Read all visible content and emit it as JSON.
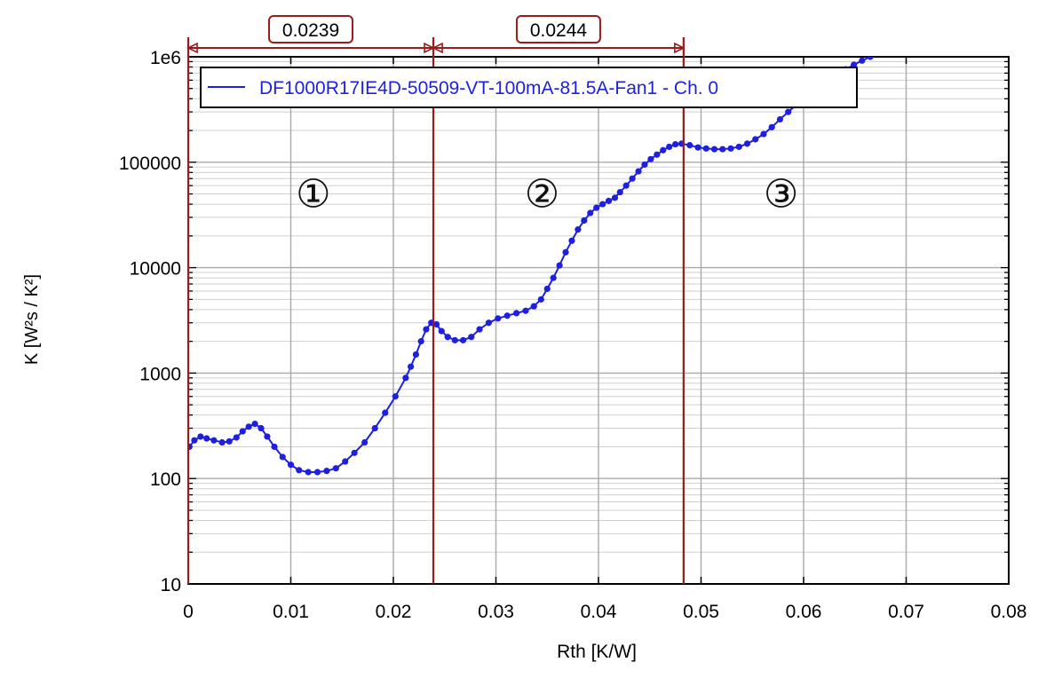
{
  "chart_data": {
    "type": "scatter",
    "xlabel": "Rth  [K/W]",
    "ylabel": "K  [W²s / K²]",
    "xlim": [
      0,
      0.08
    ],
    "ylim": [
      10,
      1000000
    ],
    "yscale": "log",
    "x_ticks": [
      "0",
      "0.01",
      "0.02",
      "0.03",
      "0.04",
      "0.05",
      "0.06",
      "0.07",
      "0.08"
    ],
    "x_tick_values": [
      0,
      0.01,
      0.02,
      0.03,
      0.04,
      0.05,
      0.06,
      0.07,
      0.08
    ],
    "y_ticks": [
      "10",
      "100",
      "1000",
      "10000",
      "100000",
      "1e6"
    ],
    "y_tick_values": [
      10,
      100,
      1000,
      10000,
      100000,
      1000000
    ],
    "grid": true,
    "legend_position": "top-left",
    "series": [
      {
        "name": "DF1000R17IE4D-50509-VT-100mA-81.5A-Fan1 - Ch. 0",
        "color": "#1f1fe0",
        "x": [
          0.0001,
          0.0006,
          0.0012,
          0.0018,
          0.0025,
          0.0033,
          0.004,
          0.0047,
          0.0053,
          0.0059,
          0.0065,
          0.0071,
          0.0077,
          0.0084,
          0.0092,
          0.01,
          0.0108,
          0.0117,
          0.0126,
          0.0135,
          0.0144,
          0.0153,
          0.0162,
          0.0172,
          0.0182,
          0.0192,
          0.0202,
          0.0212,
          0.0217,
          0.0222,
          0.0227,
          0.0232,
          0.0237,
          0.0242,
          0.0247,
          0.0253,
          0.026,
          0.0268,
          0.0276,
          0.0284,
          0.0293,
          0.0302,
          0.0311,
          0.032,
          0.0329,
          0.0337,
          0.0344,
          0.035,
          0.0356,
          0.0362,
          0.0368,
          0.0374,
          0.038,
          0.0386,
          0.0392,
          0.0398,
          0.0404,
          0.041,
          0.0416,
          0.0421,
          0.0427,
          0.0433,
          0.0439,
          0.0445,
          0.0451,
          0.0457,
          0.0463,
          0.0469,
          0.0475,
          0.0481,
          0.0489,
          0.0497,
          0.0505,
          0.0513,
          0.0521,
          0.0529,
          0.0537,
          0.0545,
          0.0553,
          0.0561,
          0.0569,
          0.0577,
          0.0585,
          0.0593,
          0.0601,
          0.0609,
          0.0617,
          0.0625,
          0.0633,
          0.0641,
          0.0649,
          0.0657,
          0.0665
        ],
        "y": [
          200,
          230,
          250,
          240,
          230,
          220,
          225,
          245,
          280,
          310,
          330,
          300,
          250,
          200,
          160,
          135,
          120,
          115,
          115,
          118,
          125,
          145,
          175,
          220,
          300,
          420,
          600,
          900,
          1150,
          1500,
          2000,
          2600,
          3000,
          2900,
          2500,
          2200,
          2050,
          2050,
          2200,
          2600,
          3000,
          3300,
          3500,
          3700,
          3900,
          4300,
          5000,
          6300,
          8000,
          10500,
          14000,
          18000,
          23000,
          28000,
          33000,
          37000,
          40000,
          43000,
          46000,
          52000,
          60000,
          70000,
          82000,
          95000,
          107000,
          118000,
          130000,
          140000,
          148000,
          150000,
          145000,
          138000,
          135000,
          133000,
          133000,
          135000,
          140000,
          150000,
          165000,
          185000,
          215000,
          255000,
          300000,
          350000,
          400000,
          460000,
          530000,
          600000,
          680000,
          760000,
          840000,
          920000,
          1000000
        ]
      }
    ],
    "markers": [
      {
        "x": 0.0,
        "color": "#9b1b1b"
      },
      {
        "x": 0.0239,
        "color": "#9b1b1b"
      },
      {
        "x": 0.0483,
        "color": "#9b1b1b"
      }
    ],
    "intervals": [
      {
        "from": 0.0,
        "to": 0.0239,
        "label": "0.0239"
      },
      {
        "from": 0.0239,
        "to": 0.0483,
        "label": "0.0244"
      }
    ],
    "regions": [
      {
        "x": 0.0122,
        "y": 50000,
        "label": "①"
      },
      {
        "x": 0.0345,
        "y": 50000,
        "label": "②"
      },
      {
        "x": 0.0578,
        "y": 50000,
        "label": "③"
      }
    ]
  }
}
